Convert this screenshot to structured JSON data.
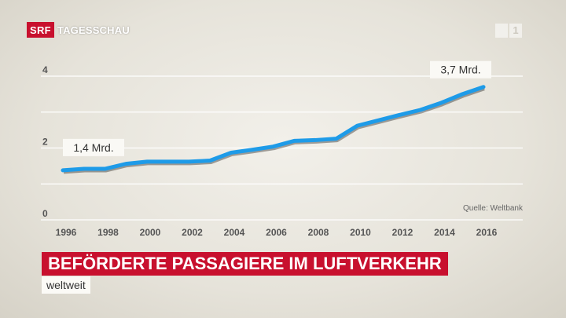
{
  "header": {
    "logo": "SRF",
    "brand": "TAGESSCHAU",
    "channel_digits": [
      "1"
    ]
  },
  "colors": {
    "line": "#1e9be8",
    "accent": "#c8102e",
    "grid": "#ffffff",
    "axis_text": "#555555"
  },
  "chart_data": {
    "type": "line",
    "x": [
      1996,
      1997,
      1998,
      1999,
      2000,
      2001,
      2002,
      2003,
      2004,
      2005,
      2006,
      2007,
      2008,
      2009,
      2010,
      2011,
      2012,
      2013,
      2014,
      2015,
      2016
    ],
    "x_ticks": [
      "1996",
      "1998",
      "2000",
      "2002",
      "2004",
      "2006",
      "2008",
      "2010",
      "2012",
      "2014",
      "2016"
    ],
    "series": [
      {
        "values": [
          1.38,
          1.42,
          1.42,
          1.56,
          1.62,
          1.62,
          1.62,
          1.65,
          1.87,
          1.95,
          2.04,
          2.2,
          2.22,
          2.26,
          2.62,
          2.77,
          2.92,
          3.06,
          3.26,
          3.5,
          3.7
        ]
      }
    ],
    "y_ticks": [
      "0",
      "2",
      "4"
    ],
    "ylim": [
      0,
      4
    ],
    "xlim": [
      1996,
      2016
    ],
    "grid": true,
    "annotations": [
      {
        "x": 1996,
        "y": 1.38,
        "text": "1,4 Mrd."
      },
      {
        "x": 2016,
        "y": 3.7,
        "text": "3,7 Mrd."
      }
    ],
    "source": "Quelle: Weltbank",
    "title": "BEFÖRDERTE PASSAGIERE IM LUFTVERKEHR",
    "subtitle": "weltweit"
  }
}
